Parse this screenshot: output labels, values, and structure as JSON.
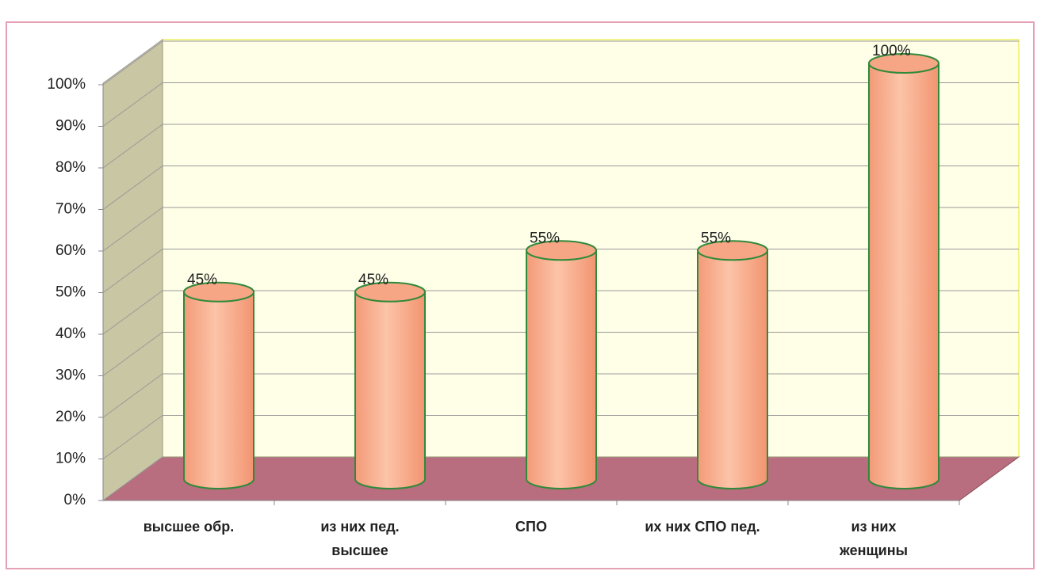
{
  "chart_data": {
    "type": "cylinder",
    "categories": [
      "высшее обр.",
      "из них пед.\nвысшее",
      "СПО",
      "их них СПО пед.",
      "из них\nженщины"
    ],
    "values": [
      45,
      45,
      55,
      55,
      100
    ],
    "value_labels": [
      "45%",
      "45%",
      "55%",
      "55%",
      "100%"
    ],
    "color": "#f8ad8c",
    "ylim": [
      0,
      100
    ],
    "yticks": [
      {
        "value": 0,
        "label": "0%"
      },
      {
        "value": 10,
        "label": "10%"
      },
      {
        "value": 20,
        "label": "20%"
      },
      {
        "value": 30,
        "label": "30%"
      },
      {
        "value": 40,
        "label": "40%"
      },
      {
        "value": 50,
        "label": "50%"
      },
      {
        "value": 60,
        "label": "60%"
      },
      {
        "value": 70,
        "label": "70%"
      },
      {
        "value": 80,
        "label": "80%"
      },
      {
        "value": 90,
        "label": "90%"
      },
      {
        "value": 100,
        "label": "100%"
      }
    ],
    "grid": true
  }
}
